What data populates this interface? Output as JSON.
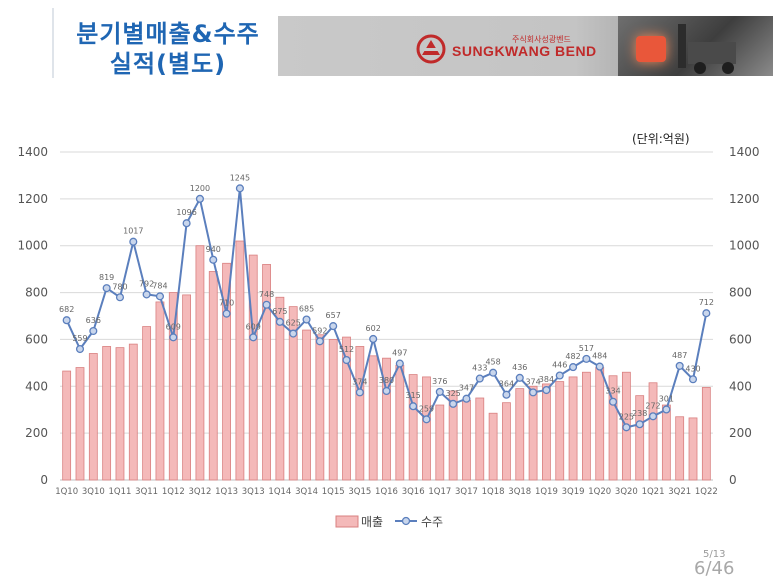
{
  "header": {
    "title_line1": "분기별매출&수주",
    "title_line2": "실적(별도)",
    "company_small": "주식회사성광벤드",
    "company_name": "SUNGKWANG BEND"
  },
  "unit_label": "(단위:억원)",
  "page": {
    "small": "5/13",
    "big": "6/46"
  },
  "colors": {
    "bar_fill": "#f4b9b9",
    "bar_stroke": "#d98080",
    "line": "#5b7fbd",
    "marker_fill": "#c9d6ec",
    "grid": "#d9d9d9",
    "title": "#1f66b3",
    "logo": "#c02a2a"
  },
  "chart_data": {
    "type": "bar",
    "y_ticks": [
      "0",
      "200",
      "400",
      "600",
      "800",
      "1000",
      "1200",
      "1400"
    ],
    "ylim": [
      0,
      1400
    ],
    "y2lim": [
      0,
      1400
    ],
    "categories": [
      "1Q10",
      "2Q10",
      "3Q10",
      "4Q10",
      "1Q11",
      "2Q11",
      "3Q11",
      "4Q11",
      "1Q12",
      "2Q12",
      "3Q12",
      "4Q12",
      "1Q13",
      "2Q13",
      "3Q13",
      "4Q13",
      "1Q14",
      "2Q14",
      "3Q14",
      "4Q14",
      "1Q15",
      "2Q15",
      "3Q15",
      "4Q15",
      "1Q16",
      "2Q16",
      "3Q16",
      "4Q16",
      "1Q17",
      "2Q17",
      "3Q17",
      "4Q17",
      "1Q18",
      "2Q18",
      "3Q18",
      "4Q18",
      "1Q19",
      "2Q19",
      "3Q19",
      "4Q19",
      "1Q20",
      "2Q20",
      "3Q20",
      "4Q20",
      "1Q21",
      "2Q21",
      "3Q21",
      "4Q21",
      "1Q22"
    ],
    "x_tick_labels": [
      "1Q10",
      "",
      "3Q10",
      "",
      "1Q11",
      "",
      "3Q11",
      "",
      "1Q12",
      "",
      "3Q12",
      "",
      "1Q13",
      "",
      "3Q13",
      "",
      "1Q14",
      "",
      "3Q14",
      "",
      "1Q15",
      "",
      "3Q15",
      "",
      "1Q16",
      "",
      "3Q16",
      "",
      "1Q17",
      "",
      "3Q17",
      "",
      "1Q18",
      "",
      "3Q18",
      "",
      "1Q19",
      "",
      "3Q19",
      "",
      "1Q20",
      "",
      "3Q20",
      "",
      "1Q21",
      "",
      "3Q21",
      "",
      "1Q22"
    ],
    "series": [
      {
        "name": "매출",
        "type": "bar",
        "values": [
          465,
          480,
          540,
          570,
          565,
          580,
          655,
          760,
          800,
          790,
          1000,
          890,
          925,
          1020,
          960,
          920,
          780,
          740,
          640,
          620,
          600,
          610,
          570,
          530,
          520,
          490,
          450,
          440,
          320,
          380,
          340,
          350,
          285,
          330,
          390,
          400,
          410,
          420,
          440,
          460,
          480,
          445,
          460,
          360,
          415,
          320,
          270,
          265,
          395
        ]
      },
      {
        "name": "수주",
        "type": "line",
        "values": [
          682,
          559,
          636,
          819,
          780,
          1017,
          792,
          784,
          609,
          1096,
          1200,
          940,
          710,
          1245,
          609,
          748,
          675,
          625,
          685,
          592,
          657,
          512,
          374,
          602,
          380,
          497,
          315,
          259,
          376,
          325,
          347,
          433,
          458,
          364,
          436,
          374,
          384,
          446,
          482,
          517,
          484,
          334,
          225,
          238,
          272,
          301,
          487,
          430,
          712
        ]
      }
    ],
    "line_labels": [
      "682",
      "559",
      "636",
      "819",
      "780",
      "1017",
      "792",
      "784",
      "609",
      "1096",
      "1200",
      "940",
      "710",
      "1245",
      "609",
      "748",
      "675",
      "625",
      "685",
      "592",
      "657",
      "512",
      "374",
      "602",
      "380",
      "497",
      "315",
      "259",
      "376",
      "325",
      "347",
      "433",
      "458",
      "364",
      "436",
      "374",
      "384",
      "446",
      "482",
      "517",
      "484",
      "334",
      "225",
      "238",
      "272",
      "301",
      "487",
      "430",
      "712"
    ],
    "legend": {
      "placement": "bottom",
      "labels": [
        "매출",
        "수주"
      ]
    },
    "grid": true
  }
}
